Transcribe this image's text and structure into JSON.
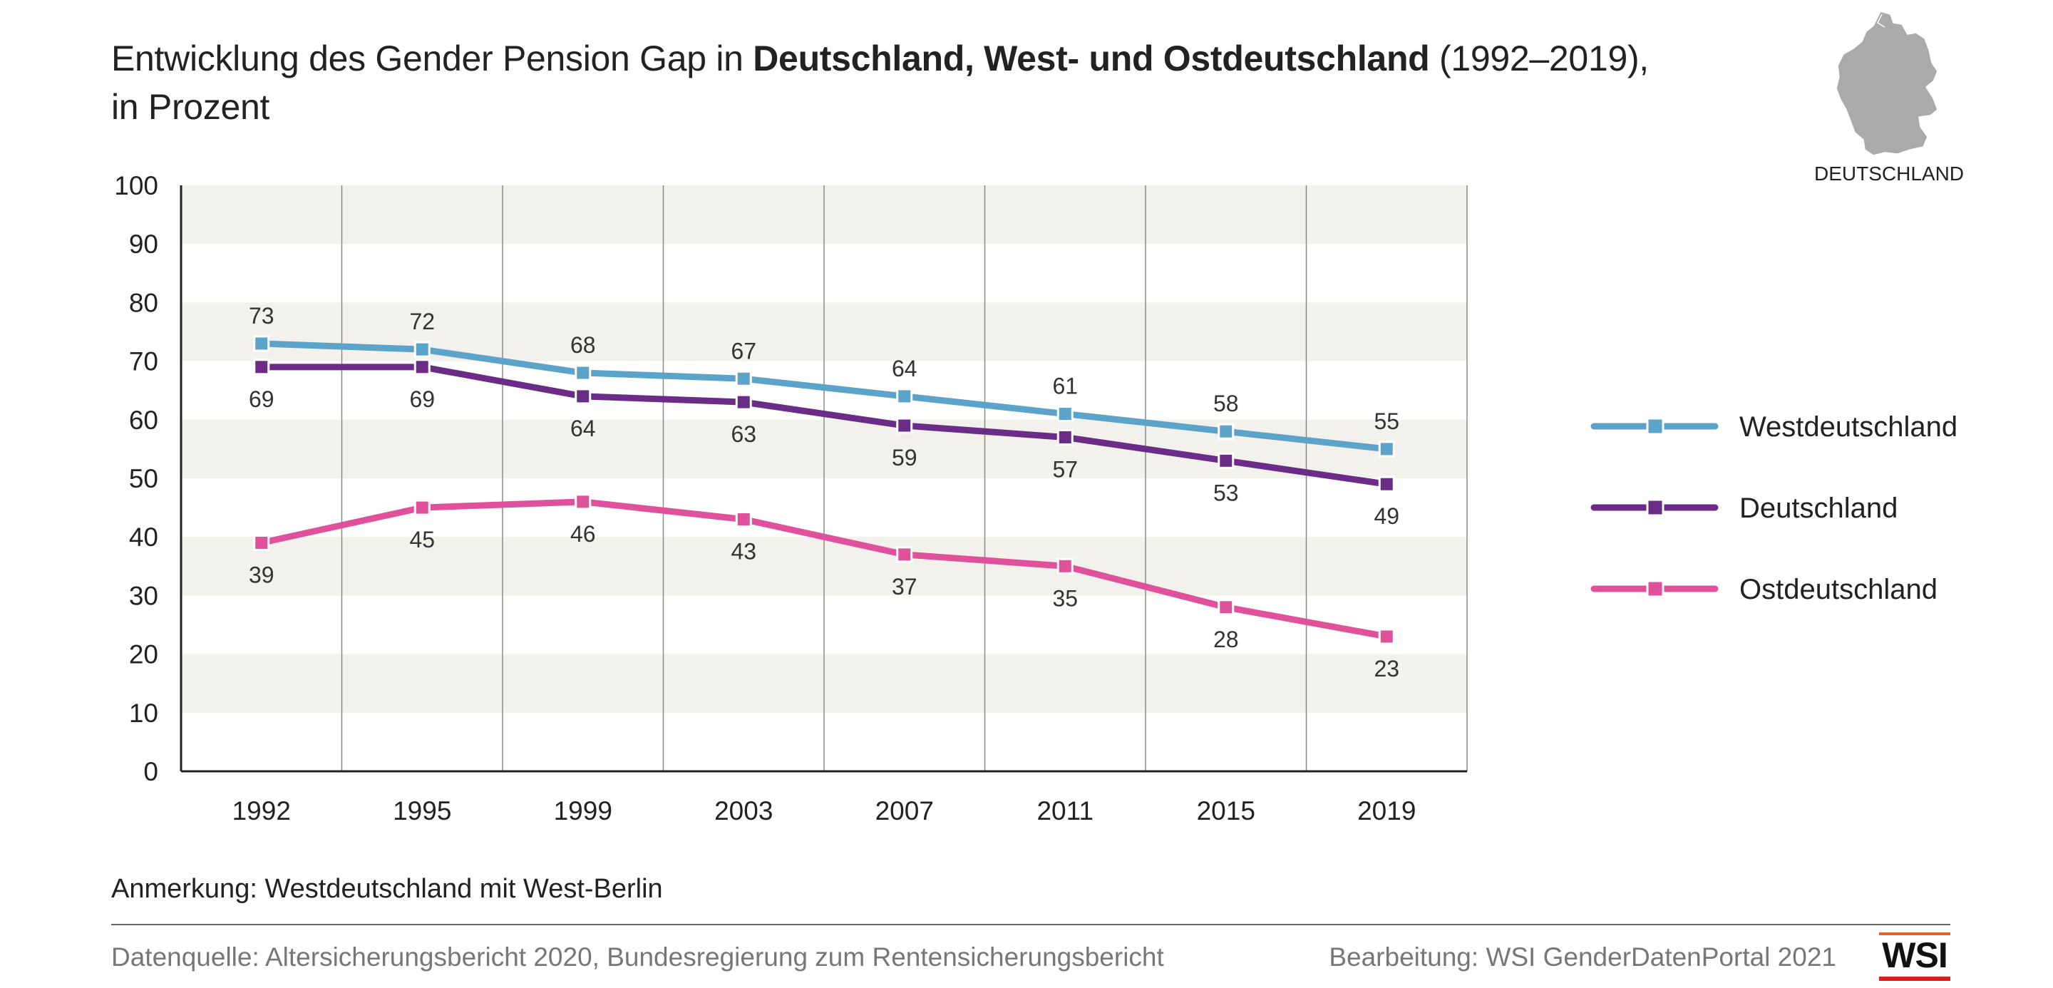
{
  "title": {
    "part1": "Entwicklung des Gender Pension Gap in ",
    "bold": "Deutschland, West- und Ostdeutschland",
    "part2": " (1992–2019),",
    "line2": "in Prozent"
  },
  "map_label": "DEUTSCHLAND",
  "note": "Anmerkung: Westdeutschland mit West-Berlin",
  "source": "Datenquelle: Altersicherungsbericht 2020, Bundesregierung zum Rentensicherungsbericht",
  "credit": "Bearbeitung: WSI GenderDatenPortal 2021",
  "logo_text": "WSI",
  "colors": {
    "west": "#5ba3c9",
    "de": "#6a2c87",
    "ost": "#e0519b",
    "band": "#f2f1eb",
    "axis": "#222222",
    "grid": "#8a8a8a"
  },
  "chart_data": {
    "type": "line",
    "title": "Entwicklung des Gender Pension Gap in Deutschland, West- und Ostdeutschland (1992–2019), in Prozent",
    "x": [
      "1992",
      "1995",
      "1999",
      "2003",
      "2007",
      "2011",
      "2015",
      "2019"
    ],
    "ylim": [
      0,
      100
    ],
    "yticks": [
      0,
      10,
      20,
      30,
      40,
      50,
      60,
      70,
      80,
      90,
      100
    ],
    "grid": true,
    "legend_position": "right",
    "series": [
      {
        "key": "west",
        "name": "Westdeutschland",
        "values": [
          73,
          72,
          68,
          67,
          64,
          61,
          58,
          55
        ],
        "label_pos": "above"
      },
      {
        "key": "de",
        "name": "Deutschland",
        "values": [
          69,
          69,
          64,
          63,
          59,
          57,
          53,
          49
        ],
        "label_pos": "below"
      },
      {
        "key": "ost",
        "name": "Ostdeutschland",
        "values": [
          39,
          45,
          46,
          43,
          37,
          35,
          28,
          23
        ],
        "label_pos": "below"
      }
    ]
  }
}
